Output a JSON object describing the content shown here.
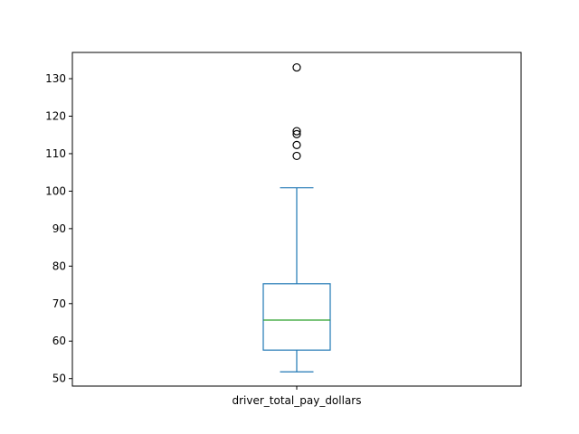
{
  "chart_data": {
    "type": "box",
    "categories": [
      "driver_total_pay_dollars"
    ],
    "series": [
      {
        "whisker_low": 51.8,
        "q1": 57.6,
        "median": 65.6,
        "q3": 75.3,
        "whisker_high": 100.9,
        "outliers": [
          109.4,
          112.3,
          115.2,
          116.0,
          133.0
        ]
      }
    ],
    "ylim": [
      48.0,
      137.0
    ],
    "yticks": [
      50,
      60,
      70,
      80,
      90,
      100,
      110,
      120,
      130
    ],
    "title": "",
    "xlabel": "",
    "ylabel": "",
    "grid": false,
    "colors": {
      "box": "#1f77b4",
      "median": "#2ca02c",
      "outlier_edge": "#000000",
      "axes": "#000000"
    }
  }
}
